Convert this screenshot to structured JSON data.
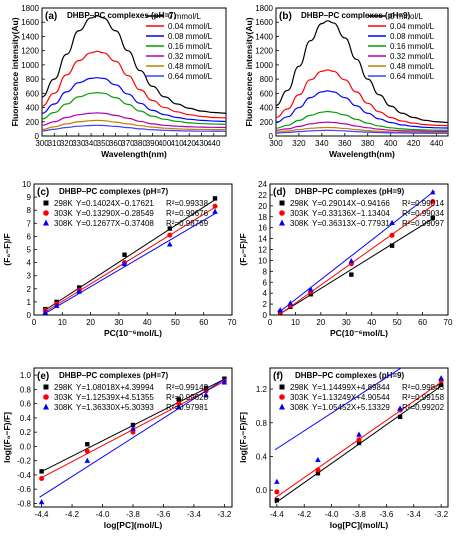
{
  "chart_data": [
    {
      "id": "a",
      "type": "line",
      "panel_label": "(a)",
      "title": "DHBP–PC complexes (pH=7)",
      "xlabel": "Wavelength(nm)",
      "ylabel": "Fluorescence intensity(Au)",
      "xlim": [
        300,
        450
      ],
      "ylim": [
        0,
        1800
      ],
      "xticks": [
        300,
        310,
        320,
        330,
        340,
        350,
        360,
        370,
        380,
        390,
        400,
        410,
        420,
        430,
        440
      ],
      "yticks": [
        0,
        200,
        400,
        600,
        800,
        1000,
        1200,
        1400,
        1600,
        1800
      ],
      "legend_position": "top-right",
      "series": [
        {
          "name": "0 mmol/L",
          "color": "#000000",
          "peak_x": 345,
          "x": [
            300,
            310,
            320,
            330,
            340,
            345,
            350,
            360,
            370,
            380,
            390,
            400,
            410,
            420,
            430,
            440,
            450
          ],
          "y": [
            550,
            800,
            1150,
            1480,
            1660,
            1690,
            1660,
            1480,
            1200,
            920,
            700,
            550,
            450,
            390,
            350,
            330,
            320
          ]
        },
        {
          "name": "0.04 mmol/L",
          "color": "#ff0000",
          "x": [
            300,
            310,
            320,
            330,
            340,
            345,
            350,
            360,
            370,
            380,
            390,
            400,
            410,
            420,
            430,
            440,
            450
          ],
          "y": [
            420,
            600,
            860,
            1060,
            1170,
            1190,
            1170,
            1050,
            850,
            650,
            500,
            400,
            340,
            300,
            275,
            260,
            255
          ]
        },
        {
          "name": "0.08 mmol/L",
          "color": "#0000ff",
          "x": [
            300,
            310,
            320,
            330,
            340,
            345,
            350,
            360,
            370,
            380,
            390,
            400,
            410,
            420,
            430,
            440,
            450
          ],
          "y": [
            320,
            450,
            620,
            750,
            810,
            820,
            810,
            720,
            590,
            460,
            360,
            300,
            260,
            235,
            220,
            210,
            205
          ]
        },
        {
          "name": "0.16 mmol/L",
          "color": "#00a000",
          "x": [
            300,
            310,
            320,
            330,
            340,
            345,
            350,
            360,
            370,
            380,
            390,
            400,
            410,
            420,
            430,
            440,
            450
          ],
          "y": [
            240,
            330,
            450,
            550,
            600,
            610,
            600,
            540,
            445,
            350,
            280,
            235,
            205,
            185,
            175,
            168,
            165
          ]
        },
        {
          "name": "0.32 mmol/L",
          "color": "#b000b0",
          "x": [
            300,
            310,
            320,
            330,
            340,
            345,
            350,
            360,
            370,
            380,
            390,
            400,
            410,
            420,
            430,
            440,
            450
          ],
          "y": [
            150,
            200,
            260,
            300,
            320,
            325,
            320,
            290,
            250,
            205,
            170,
            150,
            138,
            130,
            125,
            122,
            120
          ]
        },
        {
          "name": "0.48 mmol/L",
          "color": "#c08000",
          "x": [
            300,
            310,
            320,
            330,
            340,
            345,
            350,
            360,
            370,
            380,
            390,
            400,
            410,
            420,
            430,
            440,
            450
          ],
          "y": [
            90,
            130,
            170,
            200,
            215,
            220,
            215,
            195,
            170,
            145,
            125,
            110,
            100,
            95,
            92,
            90,
            90
          ]
        },
        {
          "name": "0.64 mmol/L",
          "color": "#4040ff",
          "x": [
            300,
            310,
            320,
            330,
            340,
            345,
            350,
            360,
            370,
            380,
            390,
            400,
            410,
            420,
            430,
            440,
            450
          ],
          "y": [
            70,
            95,
            120,
            138,
            148,
            150,
            148,
            135,
            118,
            100,
            88,
            80,
            74,
            70,
            68,
            67,
            66
          ]
        }
      ]
    },
    {
      "id": "b",
      "type": "line",
      "panel_label": "(b)",
      "title": "DHBP–PC complexes (pH=9)",
      "xlabel": "Wavelength(nm)",
      "ylabel": "Fluorescence intensity(Au)",
      "xlim": [
        300,
        450
      ],
      "ylim": [
        0,
        1800
      ],
      "xticks": [
        300,
        320,
        340,
        360,
        380,
        400,
        420,
        440
      ],
      "yticks": [
        0,
        200,
        400,
        600,
        800,
        1000,
        1200,
        1400,
        1600,
        1800
      ],
      "legend_position": "top-right",
      "series": [
        {
          "name": "0 mmol/L",
          "color": "#000000",
          "x": [
            300,
            310,
            320,
            330,
            340,
            345,
            350,
            360,
            370,
            380,
            390,
            400,
            410,
            420,
            430,
            440,
            450
          ],
          "y": [
            430,
            640,
            980,
            1340,
            1580,
            1620,
            1590,
            1380,
            1080,
            800,
            580,
            420,
            320,
            260,
            220,
            200,
            190
          ]
        },
        {
          "name": "0.04 mmol/L",
          "color": "#ff0000",
          "x": [
            300,
            310,
            320,
            330,
            340,
            345,
            350,
            360,
            370,
            380,
            390,
            400,
            410,
            420,
            430,
            440,
            450
          ],
          "y": [
            260,
            380,
            580,
            790,
            910,
            930,
            910,
            790,
            620,
            460,
            340,
            260,
            210,
            180,
            160,
            150,
            145
          ]
        },
        {
          "name": "0.08 mmol/L",
          "color": "#0000ff",
          "x": [
            300,
            310,
            320,
            330,
            340,
            345,
            350,
            360,
            370,
            380,
            390,
            400,
            410,
            420,
            430,
            440,
            450
          ],
          "y": [
            190,
            270,
            400,
            540,
            620,
            635,
            620,
            540,
            425,
            320,
            240,
            190,
            155,
            135,
            122,
            115,
            112
          ]
        },
        {
          "name": "0.16 mmol/L",
          "color": "#00a000",
          "x": [
            300,
            310,
            320,
            330,
            340,
            345,
            350,
            360,
            370,
            380,
            390,
            400,
            410,
            420,
            430,
            440,
            450
          ],
          "y": [
            110,
            150,
            220,
            290,
            335,
            345,
            335,
            295,
            235,
            180,
            140,
            115,
            100,
            90,
            85,
            82,
            80
          ]
        },
        {
          "name": "0.32 mmol/L",
          "color": "#b000b0",
          "x": [
            300,
            310,
            320,
            330,
            340,
            345,
            350,
            360,
            370,
            380,
            390,
            400,
            410,
            420,
            430,
            440,
            450
          ],
          "y": [
            80,
            100,
            135,
            170,
            190,
            195,
            190,
            170,
            140,
            115,
            95,
            82,
            74,
            70,
            67,
            65,
            64
          ]
        },
        {
          "name": "0.48 mmol/L",
          "color": "#c08000",
          "x": [
            300,
            310,
            320,
            330,
            340,
            345,
            350,
            360,
            370,
            380,
            390,
            400,
            410,
            420,
            430,
            440,
            450
          ],
          "y": [
            55,
            70,
            90,
            108,
            118,
            120,
            118,
            106,
            90,
            76,
            65,
            58,
            54,
            52,
            50,
            49,
            48
          ]
        },
        {
          "name": "0.64 mmol/L",
          "color": "#4040ff",
          "x": [
            300,
            310,
            320,
            330,
            340,
            345,
            350,
            360,
            370,
            380,
            390,
            400,
            410,
            420,
            430,
            440,
            450
          ],
          "y": [
            40,
            50,
            62,
            72,
            78,
            80,
            78,
            72,
            62,
            54,
            48,
            44,
            42,
            40,
            39,
            38,
            38
          ]
        }
      ]
    },
    {
      "id": "c",
      "type": "scatter",
      "panel_label": "(c)",
      "title": "DHBP–PC complexes (pH=7)",
      "xlabel": "PC(10⁻⁶mol/L)",
      "ylabel": "(F₀−F)/F",
      "xlim": [
        0,
        70
      ],
      "ylim": [
        0,
        10
      ],
      "xticks": [
        0,
        10,
        20,
        30,
        40,
        50,
        60,
        70
      ],
      "yticks": [
        0,
        1,
        2,
        3,
        4,
        5,
        6,
        7,
        8,
        9,
        10
      ],
      "legend_position": "top-left",
      "series": [
        {
          "name": "298K",
          "marker": "square",
          "color": "#000000",
          "equation": "Y=0.14024X−0.17621",
          "r2": "R²=0.99338",
          "slope": 0.14024,
          "intercept": -0.17621,
          "x": [
            4,
            8,
            16,
            32,
            48,
            64
          ],
          "y": [
            0.45,
            1.0,
            2.1,
            4.6,
            6.6,
            8.9
          ]
        },
        {
          "name": "303K",
          "marker": "circle",
          "color": "#ff0000",
          "equation": "Y=0.13290X−0.28549",
          "r2": "R²=0.99676",
          "slope": 0.1329,
          "intercept": -0.28549,
          "x": [
            4,
            8,
            16,
            32,
            48,
            64
          ],
          "y": [
            0.35,
            0.85,
            1.9,
            4.0,
            6.1,
            8.3
          ]
        },
        {
          "name": "308K",
          "marker": "triangle",
          "color": "#0000ff",
          "equation": "Y=0.12677X−0.37408",
          "r2": "R²=0.98769",
          "slope": 0.12677,
          "intercept": -0.37408,
          "x": [
            4,
            8,
            16,
            32,
            48,
            64
          ],
          "y": [
            0.2,
            0.7,
            1.8,
            3.9,
            5.4,
            7.9
          ]
        }
      ]
    },
    {
      "id": "d",
      "type": "scatter",
      "panel_label": "(d)",
      "title": "DHBP–PC complexes (pH=9)",
      "xlabel": "PC(10⁻⁶mol/L)",
      "ylabel": "(F₀−F)/F",
      "xlim": [
        0,
        70
      ],
      "ylim": [
        0,
        24
      ],
      "xticks": [
        0,
        10,
        20,
        30,
        40,
        50,
        60,
        70
      ],
      "yticks": [
        0,
        2,
        4,
        6,
        8,
        10,
        12,
        14,
        16,
        18,
        20,
        22,
        24
      ],
      "legend_position": "top-left",
      "series": [
        {
          "name": "298K",
          "marker": "square",
          "color": "#000000",
          "equation": "Y=0.29014X−0.94166",
          "r2": "R²=0.99014",
          "slope": 0.29014,
          "intercept": -0.94166,
          "x": [
            4,
            8,
            16,
            32,
            48,
            64
          ],
          "y": [
            0.5,
            1.5,
            3.8,
            7.4,
            12.7,
            17.8
          ]
        },
        {
          "name": "303K",
          "marker": "circle",
          "color": "#ff0000",
          "equation": "Y=0.33136X−1.13404",
          "r2": "R²=0.99034",
          "slope": 0.33136,
          "intercept": -1.13404,
          "x": [
            4,
            8,
            16,
            32,
            48,
            64
          ],
          "y": [
            0.6,
            1.7,
            4.2,
            9.4,
            14.6,
            20.8
          ]
        },
        {
          "name": "308K",
          "marker": "triangle",
          "color": "#0000ff",
          "equation": "Y=0.36313X−0.77931",
          "r2": "R²=0.99097",
          "slope": 0.36313,
          "intercept": -0.77931,
          "x": [
            4,
            8,
            16,
            32,
            48,
            64
          ],
          "y": [
            0.9,
            2.2,
            4.7,
            9.9,
            16.9,
            22.5
          ]
        }
      ]
    },
    {
      "id": "e",
      "type": "scatter",
      "panel_label": "(e)",
      "title": "DHBP–PC complexes (pH=7)",
      "xlabel": "log[PC](mol/L)",
      "ylabel": "log[(F₀−F)/F]",
      "xlim": [
        -4.45,
        -3.15
      ],
      "ylim": [
        -0.85,
        1.1
      ],
      "xticks": [
        -4.4,
        -4.2,
        -4.0,
        -3.8,
        -3.6,
        -3.4,
        -3.2
      ],
      "yticks": [
        -0.8,
        -0.6,
        -0.4,
        -0.2,
        0.0,
        0.2,
        0.4,
        0.6,
        0.8,
        1.0
      ],
      "legend_position": "top-left",
      "series": [
        {
          "name": "298K",
          "marker": "square",
          "color": "#000000",
          "equation": "Y=1.08018X+4.39994",
          "r2": "R²=0.99142",
          "slope": 1.08018,
          "intercept": 4.39994,
          "x": [
            -4.4,
            -4.1,
            -3.8,
            -3.5,
            -3.32,
            -3.2
          ],
          "y": [
            -0.35,
            0.03,
            0.3,
            0.66,
            0.82,
            0.95
          ]
        },
        {
          "name": "303K",
          "marker": "circle",
          "color": "#ff0000",
          "equation": "Y=1.12539X+4.51355",
          "r2": "R²=0.99628",
          "slope": 1.12539,
          "intercept": 4.51355,
          "x": [
            -4.4,
            -4.1,
            -3.8,
            -3.5,
            -3.32,
            -3.2
          ],
          "y": [
            -0.45,
            -0.07,
            0.2,
            0.6,
            0.78,
            0.92
          ]
        },
        {
          "name": "308K",
          "marker": "triangle",
          "color": "#0000ff",
          "equation": "Y=1.36330X+5.30393",
          "r2": "R²=0.97981",
          "slope": 1.3633,
          "intercept": 5.30393,
          "x": [
            -4.4,
            -4.1,
            -3.8,
            -3.5,
            -3.32,
            -3.2
          ],
          "y": [
            -0.78,
            -0.2,
            0.25,
            0.55,
            0.72,
            0.9
          ]
        }
      ]
    },
    {
      "id": "f",
      "type": "scatter",
      "panel_label": "(f)",
      "title": "DHBP–PC complexes (pH=9)",
      "xlabel": "log[PC](mol/L)",
      "ylabel": "log[(F₀−F)/F]",
      "xlim": [
        -4.45,
        -3.15
      ],
      "ylim": [
        -0.2,
        1.45
      ],
      "xticks": [
        -4.4,
        -4.2,
        -4.0,
        -3.8,
        -3.6,
        -3.4,
        -3.2
      ],
      "yticks": [
        0.0,
        0.4,
        0.8,
        1.2
      ],
      "legend_position": "top-left",
      "series": [
        {
          "name": "298K",
          "marker": "square",
          "color": "#000000",
          "equation": "Y=1.14499X+4.89844",
          "r2": "R²=0.99843",
          "slope": 1.14499,
          "intercept": 4.89844,
          "x": [
            -4.4,
            -4.1,
            -3.8,
            -3.5,
            -3.2
          ],
          "y": [
            -0.12,
            0.2,
            0.56,
            0.87,
            1.25
          ]
        },
        {
          "name": "303K",
          "marker": "circle",
          "color": "#ff0000",
          "equation": "Y=1.13249X+4.90544",
          "r2": "R²=0.99158",
          "slope": 1.13249,
          "intercept": 4.90544,
          "x": [
            -4.4,
            -4.1,
            -3.8,
            -3.5,
            -3.2
          ],
          "y": [
            -0.02,
            0.24,
            0.6,
            0.95,
            1.3
          ]
        },
        {
          "name": "308K",
          "marker": "triangle",
          "color": "#0000ff",
          "equation": "Y=1.05452X+5.13329",
          "r2": "R²=0.99202",
          "slope": 1.05452,
          "intercept": 5.13329,
          "x": [
            -4.4,
            -4.1,
            -3.8,
            -3.5,
            -3.2
          ],
          "y": [
            0.1,
            0.36,
            0.66,
            0.97,
            1.33
          ]
        }
      ]
    }
  ]
}
